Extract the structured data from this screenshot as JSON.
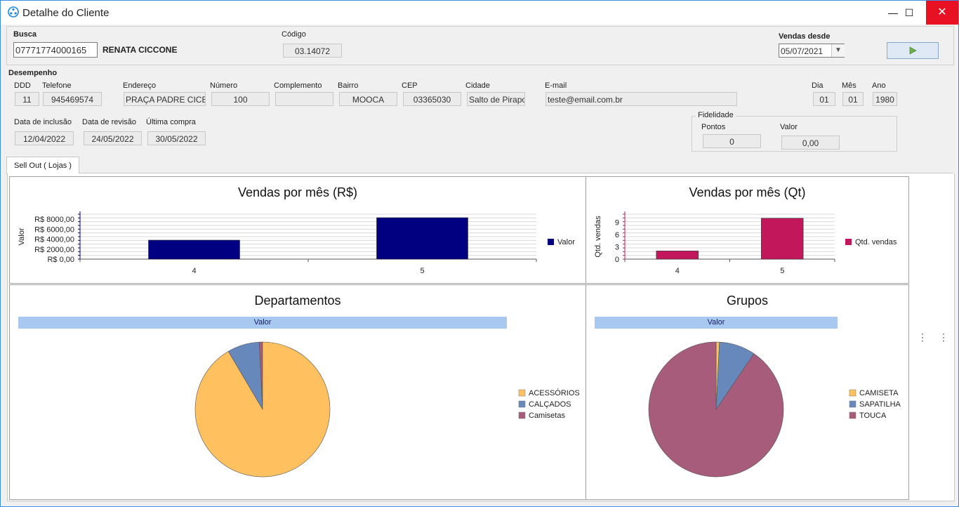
{
  "window": {
    "title": "Detalhe do Cliente",
    "minimize": "—",
    "maximize": "☐",
    "close": "✕"
  },
  "busca": {
    "label": "Busca",
    "value": "07771774000165",
    "client_name": "RENATA CICCONE"
  },
  "codigo": {
    "label": "Código",
    "value": "03.14072"
  },
  "vendas_desde": {
    "label": "Vendas desde",
    "value": "05/07/2021",
    "run_icon": "play-icon",
    "run_color": "#6ab04c"
  },
  "desempenho": {
    "label": "Desempenho",
    "ddd": {
      "label": "DDD",
      "value": "11"
    },
    "telefone": {
      "label": "Telefone",
      "value": "945469574"
    },
    "endereco": {
      "label": "Endereço",
      "value": "PRAÇA PADRE CICERO"
    },
    "numero": {
      "label": "Número",
      "value": "100"
    },
    "complemento": {
      "label": "Complemento",
      "value": ""
    },
    "bairro": {
      "label": "Bairro",
      "value": "MOOCA"
    },
    "cep": {
      "label": "CEP",
      "value": "03365030"
    },
    "cidade": {
      "label": "Cidade",
      "value": "Salto de Pirapora"
    },
    "email": {
      "label": "E-mail",
      "value": "teste@email.com.br"
    },
    "dia": {
      "label": "Dia",
      "value": "01"
    },
    "mes": {
      "label": "Mês",
      "value": "01"
    },
    "ano": {
      "label": "Ano",
      "value": "1980"
    },
    "data_inclusao": {
      "label": "Data de inclusão",
      "value": "12/04/2022"
    },
    "data_revisao": {
      "label": "Data de revisão",
      "value": "24/05/2022"
    },
    "ultima_compra": {
      "label": "Última compra",
      "value": "30/05/2022"
    },
    "fidelidade": {
      "label": "Fidelidade",
      "pontos": {
        "label": "Pontos",
        "value": "0"
      },
      "valor": {
        "label": "Valor",
        "value": "0,00"
      }
    }
  },
  "tabs": [
    {
      "label": "Sell Out ( Lojas )",
      "active": true
    }
  ],
  "chart_data": [
    {
      "type": "bar",
      "title": "Vendas por mês (R$)",
      "categories": [
        "4",
        "5"
      ],
      "series": [
        {
          "name": "Valor",
          "values": [
            3800,
            8300
          ],
          "color": "#000080"
        }
      ],
      "ylabel": "Valor",
      "ylim": [
        0,
        9000
      ],
      "yticks": [
        "R$ 0,00",
        "R$ 2000,00",
        "R$ 4000,00",
        "R$ 6000,00",
        "R$ 8000,00"
      ],
      "ytick_values": [
        0,
        2000,
        4000,
        6000,
        8000
      ],
      "grid": true,
      "legend": "right"
    },
    {
      "type": "bar",
      "title": "Vendas por mês (Qt)",
      "categories": [
        "4",
        "5"
      ],
      "series": [
        {
          "name": "Qtd. vendas",
          "values": [
            2,
            10
          ],
          "color": "#c2185b"
        }
      ],
      "ylabel": "Qtd. vendas",
      "ylim": [
        0,
        11
      ],
      "yticks": [
        "0",
        "3",
        "6",
        "9"
      ],
      "ytick_values": [
        0,
        3,
        6,
        9
      ],
      "grid": true,
      "legend": "right"
    },
    {
      "type": "pie",
      "title": "Departamentos",
      "header": "Valor",
      "labels": [
        "ACESSÓRIOS",
        "CALÇADOS",
        "Camisetas"
      ],
      "values": [
        91.5,
        7.7,
        0.8
      ],
      "colors": [
        "#ffc060",
        "#6688bb",
        "#a65c7a"
      ],
      "legend": "right"
    },
    {
      "type": "pie",
      "title": "Grupos",
      "header": "Valor",
      "labels": [
        "CAMISETA",
        "SAPATILHA",
        "TOUCA"
      ],
      "values": [
        0.8,
        8.7,
        90.5
      ],
      "colors": [
        "#ffc060",
        "#6688bb",
        "#a65c7a"
      ],
      "legend": "right"
    }
  ]
}
